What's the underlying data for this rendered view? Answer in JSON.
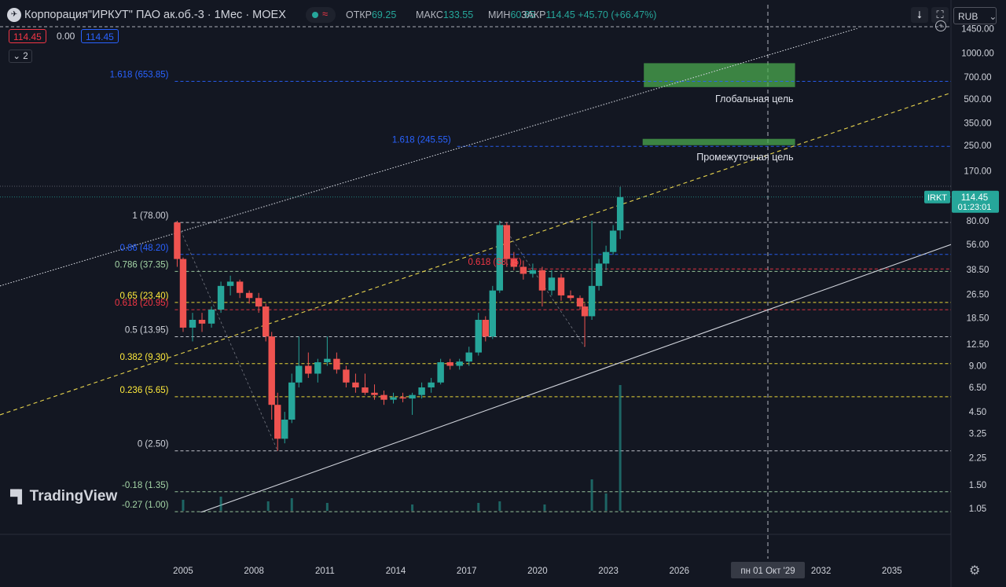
{
  "header": {
    "title": "Корпорация\"ИРКУТ\" ПАО ак.об.-3 · 1Мес · MOEX",
    "ohlc": [
      {
        "key": "ОТКР",
        "value": "69.25"
      },
      {
        "key": "МАКС",
        "value": "133.55"
      },
      {
        "key": "МИН",
        "value": "60.85"
      },
      {
        "key": "ЗАКР",
        "value": "114.45 +45.70 (+66.47%)"
      }
    ],
    "currency": "RUB",
    "values": [
      "114.45",
      "0.00",
      "114.45"
    ],
    "indicator_count": "2",
    "download_icon": "arrow-down-icon",
    "fullscreen_icon": "fullscreen-icon"
  },
  "colors": {
    "background": "#131722",
    "up": "#26a69a",
    "down": "#ef5350",
    "channel": "#d1d4dc",
    "mid_channel": "#e8d44d",
    "target_box": "#4caf50"
  },
  "logo": {
    "text": "TradingView",
    "icon": "tradingview-logo-icon"
  },
  "chart_data": {
    "type": "candlestick",
    "y_scale": "log",
    "y_ticks": [
      "1450.00",
      "1000.00",
      "700.00",
      "500.00",
      "350.00",
      "250.00",
      "170.00",
      "80.00",
      "56.00",
      "38.50",
      "26.50",
      "18.50",
      "12.50",
      "9.00",
      "6.50",
      "4.50",
      "3.25",
      "2.25",
      "1.50",
      "1.05"
    ],
    "y_tick_values": [
      1450,
      1000,
      700,
      500,
      350,
      250,
      170,
      80,
      56,
      38.5,
      26.5,
      18.5,
      12.5,
      9,
      6.5,
      4.5,
      3.25,
      2.25,
      1.5,
      1.05
    ],
    "x_ticks": [
      "2005",
      "2008",
      "2011",
      "2014",
      "2017",
      "2020",
      "2023",
      "2026",
      "2029",
      "2032",
      "2035"
    ],
    "x_tick_values": [
      2005,
      2008,
      2011,
      2014,
      2017,
      2020,
      2023,
      2026,
      2029,
      2032,
      2035
    ],
    "x_range": [
      1997.25,
      2037.5
    ],
    "y_range": [
      0.9,
      1700
    ],
    "crosshair": {
      "x_label": "пн 01 Окт '29",
      "x_value": 2029.75
    },
    "last_price": {
      "symbol": "IRKT",
      "price": "114.45",
      "countdown": "01:23:01",
      "value": 114.45
    },
    "fib_levels": [
      {
        "label": "1 (78.00)",
        "value": 78.0,
        "color": "#d1d4dc",
        "x_from": 2004.65
      },
      {
        "label": "0.86 (48.20)",
        "value": 48.2,
        "color": "#2962ff",
        "x_from": 2004.65
      },
      {
        "label": "0.786 (37.35)",
        "value": 37.35,
        "color": "#a5d6a7",
        "x_from": 2004.65
      },
      {
        "label": "0.65 (23.40)",
        "value": 23.4,
        "color": "#ffeb3b",
        "x_from": 2004.65
      },
      {
        "label": "0.618 (20.95)",
        "value": 20.95,
        "color": "#f23645",
        "x_from": 2004.65
      },
      {
        "label": "0.5 (13.95)",
        "value": 13.95,
        "color": "#d1d4dc",
        "x_from": 2004.65
      },
      {
        "label": "0.382 (9.30)",
        "value": 9.3,
        "color": "#ffeb3b",
        "x_from": 2004.65
      },
      {
        "label": "0.236 (5.65)",
        "value": 5.65,
        "color": "#ffeb3b",
        "x_from": 2004.65
      },
      {
        "label": "0 (2.50)",
        "value": 2.5,
        "color": "#d1d4dc",
        "x_from": 2004.65
      },
      {
        "label": "-0.18 (1.35)",
        "value": 1.35,
        "color": "#a5d6a7",
        "x_from": 2004.65
      },
      {
        "label": "-0.27 (1.00)",
        "value": 1.0,
        "color": "#a5d6a7",
        "x_from": 2004.65
      },
      {
        "label": "1.618 (653.85)",
        "value": 653.85,
        "color": "#2962ff",
        "x_from": 2004.65
      },
      {
        "label": "1.618 (245.55)",
        "value": 245.55,
        "color": "#2962ff",
        "x_from": 2016.6
      },
      {
        "label": "0.618 (38.75)",
        "value": 38.75,
        "color": "#f23645",
        "x_from": 2019.6
      }
    ],
    "target_zones": [
      {
        "label": "Глобальная цель",
        "x0": 2024.5,
        "x1": 2030.9,
        "low": 600,
        "high": 860
      },
      {
        "label": "Промежуточная цель",
        "x0": 2024.45,
        "x1": 2030.9,
        "low": 250,
        "high": 275
      }
    ],
    "channel_lines": [
      {
        "name": "",
        "p1": [
          1997.25,
          30
        ],
        "p2": [
          2035,
          1700
        ],
        "style": "dotted",
        "color": "#d1d4dc"
      },
      {
        "name": "",
        "p1": [
          2005.0,
          0.9
        ],
        "p2": [
          2037.5,
          56
        ],
        "style": "solid",
        "color": "#d1d4dc"
      },
      {
        "name": "",
        "p1": [
          1997.25,
          4.3
        ],
        "p2": [
          2037.5,
          550
        ],
        "style": "dashed",
        "color": "#e8d44d"
      }
    ],
    "candles": [
      {
        "t": 2004.75,
        "o": 78,
        "h": 80,
        "l": 40,
        "c": 45
      },
      {
        "t": 2005.0,
        "o": 45,
        "h": 46,
        "l": 15,
        "c": 16
      },
      {
        "t": 2005.4,
        "o": 16,
        "h": 20,
        "l": 13,
        "c": 18
      },
      {
        "t": 2005.8,
        "o": 18,
        "h": 20,
        "l": 15,
        "c": 17
      },
      {
        "t": 2006.2,
        "o": 17,
        "h": 22,
        "l": 16,
        "c": 21
      },
      {
        "t": 2006.6,
        "o": 21,
        "h": 32,
        "l": 20,
        "c": 30
      },
      {
        "t": 2007.0,
        "o": 30,
        "h": 35,
        "l": 26,
        "c": 32
      },
      {
        "t": 2007.4,
        "o": 32,
        "h": 33,
        "l": 25,
        "c": 27
      },
      {
        "t": 2007.8,
        "o": 27,
        "h": 28,
        "l": 23,
        "c": 25
      },
      {
        "t": 2008.2,
        "o": 25,
        "h": 27,
        "l": 20,
        "c": 22
      },
      {
        "t": 2008.5,
        "o": 22,
        "h": 23,
        "l": 13,
        "c": 14
      },
      {
        "t": 2008.75,
        "o": 14,
        "h": 15,
        "l": 4,
        "c": 5
      },
      {
        "t": 2009.0,
        "o": 5,
        "h": 6,
        "l": 2.5,
        "c": 3
      },
      {
        "t": 2009.3,
        "o": 3,
        "h": 4.5,
        "l": 2.8,
        "c": 4
      },
      {
        "t": 2009.6,
        "o": 4,
        "h": 8,
        "l": 3.8,
        "c": 7
      },
      {
        "t": 2009.9,
        "o": 7,
        "h": 14,
        "l": 6.5,
        "c": 9
      },
      {
        "t": 2010.3,
        "o": 9,
        "h": 11,
        "l": 7.5,
        "c": 8
      },
      {
        "t": 2010.7,
        "o": 8,
        "h": 10,
        "l": 7,
        "c": 9.5
      },
      {
        "t": 2011.1,
        "o": 9.5,
        "h": 14,
        "l": 9,
        "c": 10
      },
      {
        "t": 2011.5,
        "o": 10,
        "h": 11,
        "l": 8,
        "c": 8.5
      },
      {
        "t": 2011.9,
        "o": 8.5,
        "h": 9,
        "l": 6.5,
        "c": 7
      },
      {
        "t": 2012.3,
        "o": 7,
        "h": 8,
        "l": 6,
        "c": 6.5
      },
      {
        "t": 2012.7,
        "o": 6.5,
        "h": 8,
        "l": 5.8,
        "c": 6
      },
      {
        "t": 2013.1,
        "o": 6,
        "h": 6.8,
        "l": 5.4,
        "c": 5.8
      },
      {
        "t": 2013.5,
        "o": 5.8,
        "h": 6.2,
        "l": 5,
        "c": 5.4
      },
      {
        "t": 2013.9,
        "o": 5.4,
        "h": 6,
        "l": 5.1,
        "c": 5.6
      },
      {
        "t": 2014.3,
        "o": 5.6,
        "h": 6,
        "l": 5.2,
        "c": 5.5
      },
      {
        "t": 2014.7,
        "o": 5.5,
        "h": 6,
        "l": 4.3,
        "c": 5.8
      },
      {
        "t": 2015.1,
        "o": 5.8,
        "h": 7,
        "l": 5.5,
        "c": 6.5
      },
      {
        "t": 2015.5,
        "o": 6.5,
        "h": 7.5,
        "l": 6,
        "c": 7
      },
      {
        "t": 2015.9,
        "o": 7,
        "h": 10,
        "l": 6.8,
        "c": 9.5
      },
      {
        "t": 2016.3,
        "o": 9.5,
        "h": 10,
        "l": 8.5,
        "c": 9
      },
      {
        "t": 2016.7,
        "o": 9,
        "h": 10,
        "l": 8.5,
        "c": 9.6
      },
      {
        "t": 2017.1,
        "o": 9.6,
        "h": 12,
        "l": 9,
        "c": 11
      },
      {
        "t": 2017.5,
        "o": 11,
        "h": 20,
        "l": 10.5,
        "c": 18
      },
      {
        "t": 2017.8,
        "o": 18,
        "h": 19,
        "l": 13,
        "c": 14
      },
      {
        "t": 2018.1,
        "o": 14,
        "h": 30,
        "l": 13.5,
        "c": 28
      },
      {
        "t": 2018.4,
        "o": 28,
        "h": 80,
        "l": 27,
        "c": 75
      },
      {
        "t": 2018.7,
        "o": 75,
        "h": 78,
        "l": 40,
        "c": 45
      },
      {
        "t": 2019.0,
        "o": 45,
        "h": 50,
        "l": 38,
        "c": 40
      },
      {
        "t": 2019.4,
        "o": 40,
        "h": 44,
        "l": 33,
        "c": 36
      },
      {
        "t": 2019.8,
        "o": 36,
        "h": 42,
        "l": 34,
        "c": 38
      },
      {
        "t": 2020.2,
        "o": 38,
        "h": 40,
        "l": 22,
        "c": 28
      },
      {
        "t": 2020.6,
        "o": 28,
        "h": 38,
        "l": 26,
        "c": 34
      },
      {
        "t": 2021.0,
        "o": 34,
        "h": 36,
        "l": 24,
        "c": 26
      },
      {
        "t": 2021.4,
        "o": 26,
        "h": 28,
        "l": 24,
        "c": 25
      },
      {
        "t": 2021.8,
        "o": 25,
        "h": 26,
        "l": 21,
        "c": 22
      },
      {
        "t": 2022.0,
        "o": 22,
        "h": 23,
        "l": 12,
        "c": 19
      },
      {
        "t": 2022.3,
        "o": 19,
        "h": 80,
        "l": 18,
        "c": 30
      },
      {
        "t": 2022.6,
        "o": 30,
        "h": 45,
        "l": 28,
        "c": 42
      },
      {
        "t": 2022.9,
        "o": 42,
        "h": 55,
        "l": 38,
        "c": 50
      },
      {
        "t": 2023.2,
        "o": 50,
        "h": 75,
        "l": 48,
        "c": 69
      },
      {
        "t": 2023.5,
        "o": 69.25,
        "h": 133.55,
        "l": 60.85,
        "c": 114.45
      }
    ],
    "volume": [
      {
        "t": 2005.0,
        "v": 0.35
      },
      {
        "t": 2006.6,
        "v": 0.45
      },
      {
        "t": 2008.6,
        "v": 0.3
      },
      {
        "t": 2009.6,
        "v": 0.4
      },
      {
        "t": 2011.1,
        "v": 0.25
      },
      {
        "t": 2014.7,
        "v": 0.2
      },
      {
        "t": 2017.5,
        "v": 0.25
      },
      {
        "t": 2018.4,
        "v": 0.3
      },
      {
        "t": 2020.3,
        "v": 0.2
      },
      {
        "t": 2022.3,
        "v": 1.0
      },
      {
        "t": 2022.9,
        "v": 0.55
      },
      {
        "t": 2023.5,
        "v": 4.0
      }
    ]
  }
}
